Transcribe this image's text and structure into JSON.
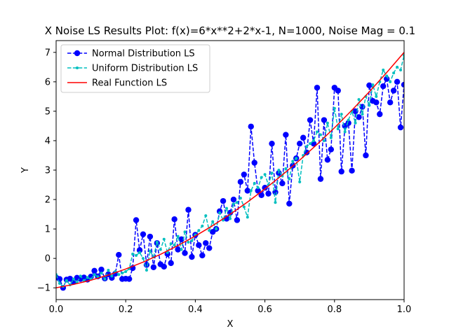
{
  "chart_data": {
    "type": "line",
    "title": "X Noise LS Results Plot: f(x)=6*x**2+2*x-1, N=1000, Noise Mag = 0.1",
    "xlabel": "X",
    "ylabel": "Y",
    "xlim": [
      0,
      1
    ],
    "ylim": [
      -1.4,
      7.4
    ],
    "xticks": [
      0.0,
      0.2,
      0.4,
      0.6,
      0.8,
      1.0
    ],
    "xtick_labels": [
      "0.0",
      "0.2",
      "0.4",
      "0.6",
      "0.8",
      "1.0"
    ],
    "yticks": [
      -1,
      0,
      1,
      2,
      3,
      4,
      5,
      6,
      7
    ],
    "ytick_labels": [
      "−1",
      "0",
      "1",
      "2",
      "3",
      "4",
      "5",
      "6",
      "7"
    ],
    "grid": false,
    "legend_position": "upper-left",
    "series": [
      {
        "name": "Normal Distribution LS",
        "color": "#0000ff",
        "style": "dashed",
        "marker": "circle-large",
        "x": [
          0.0,
          0.01,
          0.02,
          0.03,
          0.04,
          0.05,
          0.06,
          0.07,
          0.08,
          0.09,
          0.1,
          0.11,
          0.12,
          0.13,
          0.14,
          0.15,
          0.16,
          0.17,
          0.18,
          0.19,
          0.2,
          0.21,
          0.22,
          0.23,
          0.24,
          0.25,
          0.26,
          0.27,
          0.28,
          0.29,
          0.3,
          0.31,
          0.32,
          0.33,
          0.34,
          0.35,
          0.36,
          0.37,
          0.38,
          0.39,
          0.4,
          0.41,
          0.42,
          0.43,
          0.44,
          0.45,
          0.46,
          0.47,
          0.48,
          0.49,
          0.5,
          0.51,
          0.52,
          0.53,
          0.54,
          0.55,
          0.56,
          0.57,
          0.58,
          0.59,
          0.6,
          0.61,
          0.62,
          0.63,
          0.64,
          0.65,
          0.66,
          0.67,
          0.68,
          0.69,
          0.7,
          0.71,
          0.72,
          0.73,
          0.74,
          0.75,
          0.76,
          0.77,
          0.78,
          0.79,
          0.8,
          0.81,
          0.82,
          0.83,
          0.84,
          0.85,
          0.86,
          0.87,
          0.88,
          0.89,
          0.9,
          0.91,
          0.92,
          0.93,
          0.94,
          0.95,
          0.96,
          0.97,
          0.98,
          0.99,
          1.0
        ],
        "y": [
          -0.65,
          -0.7,
          -1.0,
          -0.72,
          -0.69,
          -0.8,
          -0.66,
          -0.7,
          -0.65,
          -0.72,
          -0.62,
          -0.42,
          -0.61,
          -0.38,
          -0.68,
          -0.54,
          -0.66,
          -0.52,
          0.12,
          -0.7,
          -0.69,
          -0.7,
          -0.33,
          1.3,
          0.28,
          0.82,
          -0.22,
          0.74,
          -0.3,
          0.52,
          -0.2,
          -0.28,
          0.15,
          -0.16,
          1.33,
          0.3,
          0.65,
          0.18,
          1.65,
          0.05,
          0.8,
          0.45,
          0.1,
          0.52,
          0.35,
          0.9,
          1.0,
          1.6,
          1.95,
          1.35,
          1.55,
          2.0,
          1.3,
          2.6,
          2.85,
          2.3,
          4.48,
          3.25,
          2.3,
          2.15,
          2.4,
          2.2,
          3.9,
          2.25,
          2.9,
          2.55,
          4.2,
          1.86,
          3.15,
          3.4,
          3.9,
          4.1,
          3.6,
          4.7,
          3.9,
          5.8,
          2.7,
          4.7,
          3.35,
          3.7,
          5.8,
          5.7,
          2.95,
          4.5,
          4.6,
          2.98,
          5.0,
          4.8,
          5.15,
          3.5,
          5.88,
          5.35,
          5.3,
          4.9,
          5.85,
          6.1,
          5.3,
          5.7,
          6.0,
          4.45,
          5.9
        ]
      },
      {
        "name": "Uniform Distribution LS",
        "color": "#00bfbf",
        "style": "dashed",
        "marker": "circle-small",
        "x": [
          0.0,
          0.01,
          0.02,
          0.03,
          0.04,
          0.05,
          0.06,
          0.07,
          0.08,
          0.09,
          0.1,
          0.11,
          0.12,
          0.13,
          0.14,
          0.15,
          0.16,
          0.17,
          0.18,
          0.19,
          0.2,
          0.21,
          0.22,
          0.23,
          0.24,
          0.25,
          0.26,
          0.27,
          0.28,
          0.29,
          0.3,
          0.31,
          0.32,
          0.33,
          0.34,
          0.35,
          0.36,
          0.37,
          0.38,
          0.39,
          0.4,
          0.41,
          0.42,
          0.43,
          0.44,
          0.45,
          0.46,
          0.47,
          0.48,
          0.49,
          0.5,
          0.51,
          0.52,
          0.53,
          0.54,
          0.55,
          0.56,
          0.57,
          0.58,
          0.59,
          0.6,
          0.61,
          0.62,
          0.63,
          0.64,
          0.65,
          0.66,
          0.67,
          0.68,
          0.69,
          0.7,
          0.71,
          0.72,
          0.73,
          0.74,
          0.75,
          0.76,
          0.77,
          0.78,
          0.79,
          0.8,
          0.81,
          0.82,
          0.83,
          0.84,
          0.85,
          0.86,
          0.87,
          0.88,
          0.89,
          0.9,
          0.91,
          0.92,
          0.93,
          0.94,
          0.95,
          0.96,
          0.97,
          0.98,
          0.99,
          1.0
        ],
        "y": [
          -0.55,
          -0.85,
          -0.95,
          -0.75,
          -0.9,
          -0.7,
          -0.82,
          -0.6,
          -0.75,
          -0.65,
          -0.7,
          -0.55,
          -0.62,
          -0.5,
          -0.7,
          -0.4,
          -0.6,
          -0.45,
          -0.55,
          -0.5,
          -0.45,
          -0.35,
          0.15,
          0.1,
          0.2,
          0.0,
          -0.4,
          0.25,
          0.05,
          0.55,
          0.3,
          0.65,
          0.2,
          0.5,
          0.45,
          0.75,
          0.3,
          0.9,
          0.55,
          0.6,
          0.8,
          0.95,
          1.1,
          1.45,
          0.95,
          1.25,
          1.0,
          1.55,
          1.3,
          1.7,
          1.35,
          1.85,
          1.9,
          2.05,
          1.75,
          1.4,
          2.3,
          2.55,
          2.4,
          2.75,
          2.85,
          2.5,
          2.9,
          1.9,
          3.0,
          2.8,
          3.05,
          2.7,
          3.3,
          3.4,
          2.6,
          3.5,
          3.8,
          3.9,
          4.0,
          4.3,
          4.2,
          4.0,
          4.6,
          4.1,
          5.1,
          4.4,
          4.9,
          4.3,
          4.7,
          5.0,
          4.6,
          5.4,
          4.9,
          5.5,
          5.2,
          5.9,
          5.5,
          6.0,
          6.4,
          6.2,
          6.0,
          6.3,
          6.5,
          6.4,
          6.9
        ]
      },
      {
        "name": "Real Function LS",
        "color": "#ff0000",
        "style": "solid",
        "marker": "none",
        "x": [
          0.0,
          0.05,
          0.1,
          0.15,
          0.2,
          0.25,
          0.3,
          0.35,
          0.4,
          0.45,
          0.5,
          0.55,
          0.6,
          0.65,
          0.7,
          0.75,
          0.8,
          0.85,
          0.9,
          0.95,
          1.0
        ],
        "y": [
          -1.0,
          -0.885,
          -0.74,
          -0.565,
          -0.36,
          -0.125,
          0.14,
          0.435,
          0.76,
          1.115,
          1.5,
          1.915,
          2.36,
          2.835,
          3.34,
          3.875,
          4.44,
          5.035,
          5.66,
          6.315,
          7.0
        ]
      }
    ]
  }
}
